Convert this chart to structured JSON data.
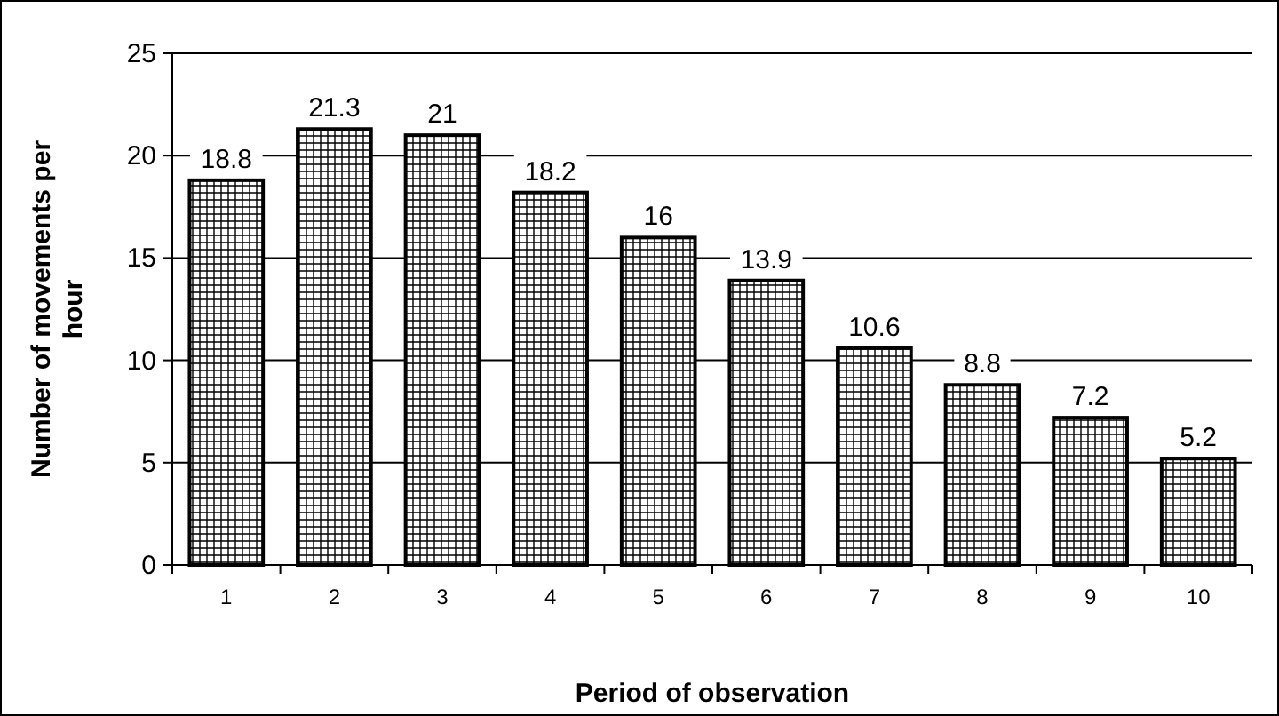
{
  "chart_data": {
    "type": "bar",
    "xlabel": "Period of observation",
    "ylabel": "Number of movements per hour",
    "categories": [
      "1",
      "2",
      "3",
      "4",
      "5",
      "6",
      "7",
      "8",
      "9",
      "10"
    ],
    "values": [
      18.8,
      21.3,
      21,
      18.2,
      16,
      13.9,
      10.6,
      8.8,
      7.2,
      5.2
    ],
    "color": "#000000",
    "ylim": [
      0,
      25
    ],
    "yticks": [
      0,
      5,
      10,
      15,
      20,
      25
    ],
    "grid": "y",
    "data_labels": true
  }
}
